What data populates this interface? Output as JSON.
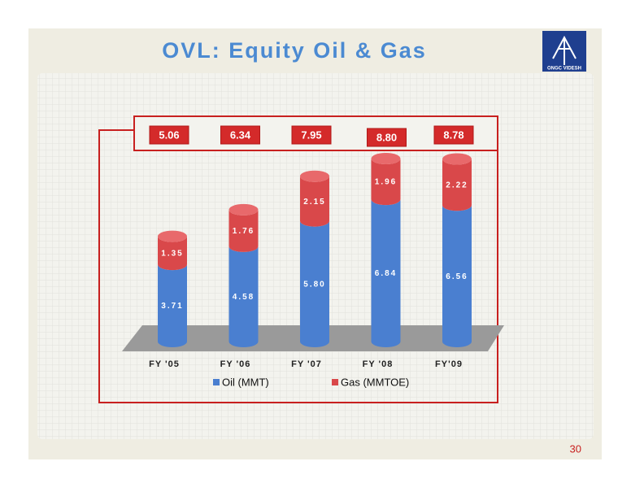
{
  "logo_text": "ONGC VIDESH",
  "slide_number": "30",
  "chart_data": {
    "type": "bar",
    "stacked": true,
    "title": "OVL: Equity Oil & Gas",
    "categories": [
      "FY '05",
      "FY '06",
      "FY '07",
      "FY '08",
      "FY'09"
    ],
    "series": [
      {
        "name": "Oil (MMT)",
        "color": "#4a7fd0",
        "values": [
          3.71,
          4.58,
          5.8,
          6.84,
          6.56
        ],
        "value_labels": [
          "3.71",
          "4.58",
          "5.80",
          "6.84",
          "6.56"
        ]
      },
      {
        "name": "Gas (MMTOE)",
        "color": "#d9484a",
        "values": [
          1.35,
          1.76,
          2.15,
          1.96,
          2.22
        ]
      }
    ],
    "totals": {
      "values": [
        5.06,
        6.34,
        7.95,
        8.8,
        8.78
      ],
      "value_labels": [
        "5.06",
        "6.34",
        "7.95",
        "8.80",
        "8.78"
      ]
    },
    "legend": "bottom"
  }
}
